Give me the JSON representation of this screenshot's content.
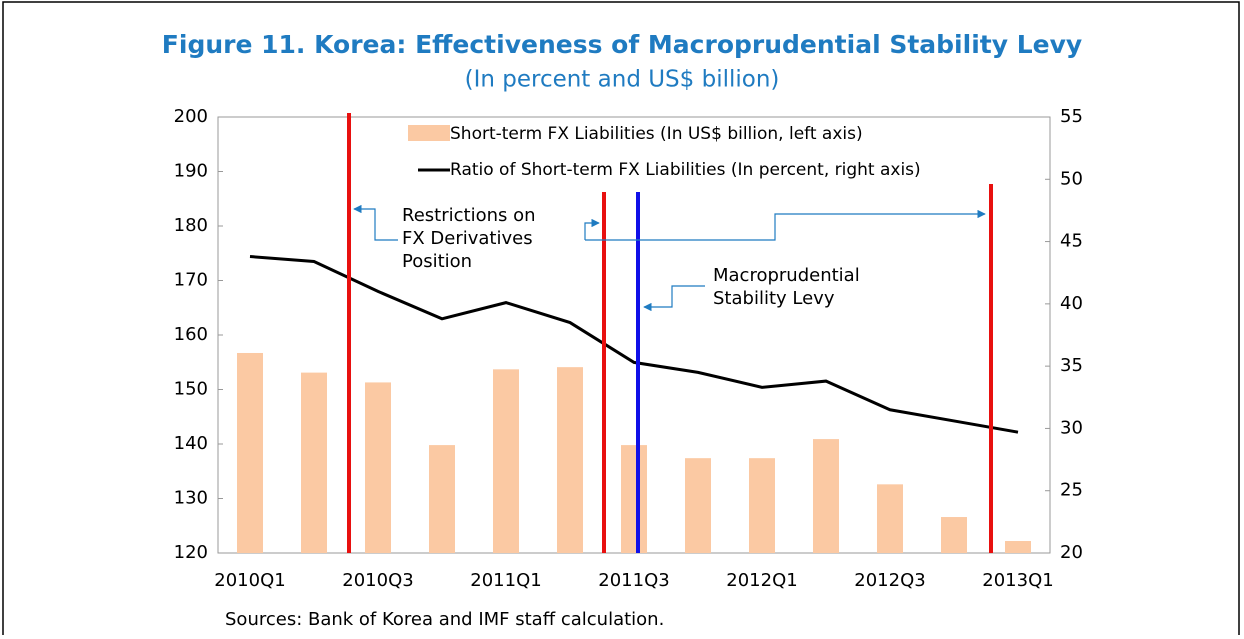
{
  "chart_data": {
    "type": "combo",
    "title": "Figure 11. Korea: Effectiveness of Macroprudential Stability Levy",
    "subtitle": "(In percent and US$ billion)",
    "categories": [
      "2010Q1",
      null,
      "2010Q3",
      null,
      "2011Q1",
      null,
      "2011Q3",
      null,
      "2012Q1",
      null,
      "2012Q3",
      null,
      "2013Q1"
    ],
    "series": [
      {
        "name": "Short-term FX Liabilities (In US$ billion, left axis)",
        "type": "bar",
        "color": "#fbc9a3",
        "values": [
          156.7,
          153.1,
          151.3,
          139.8,
          153.7,
          154.1,
          139.8,
          137.4,
          137.4,
          140.9,
          132.6,
          126.6,
          122.2
        ]
      },
      {
        "name": "Ratio of Short-term FX Liabilities (In percent, right axis)",
        "type": "line",
        "color": "#000000",
        "axis": "y2",
        "values": [
          43.8,
          43.4,
          41.0,
          38.8,
          40.1,
          38.5,
          35.3,
          34.5,
          33.3,
          33.8,
          31.5,
          30.6,
          29.7
        ]
      }
    ],
    "ylim": [
      120,
      200
    ],
    "yticks": [
      120,
      130,
      140,
      150,
      160,
      170,
      180,
      190,
      200
    ],
    "y2lim": [
      20,
      55
    ],
    "y2ticks": [
      20,
      25,
      30,
      35,
      40,
      45,
      50,
      55
    ],
    "annotations": [
      {
        "lines": [
          "Restrictions on",
          "FX Derivatives",
          "Position"
        ]
      },
      {
        "lines": [
          "Macroprudential",
          "Stability Levy"
        ]
      }
    ],
    "source": "Sources: Bank of Korea and IMF staff calculation."
  }
}
